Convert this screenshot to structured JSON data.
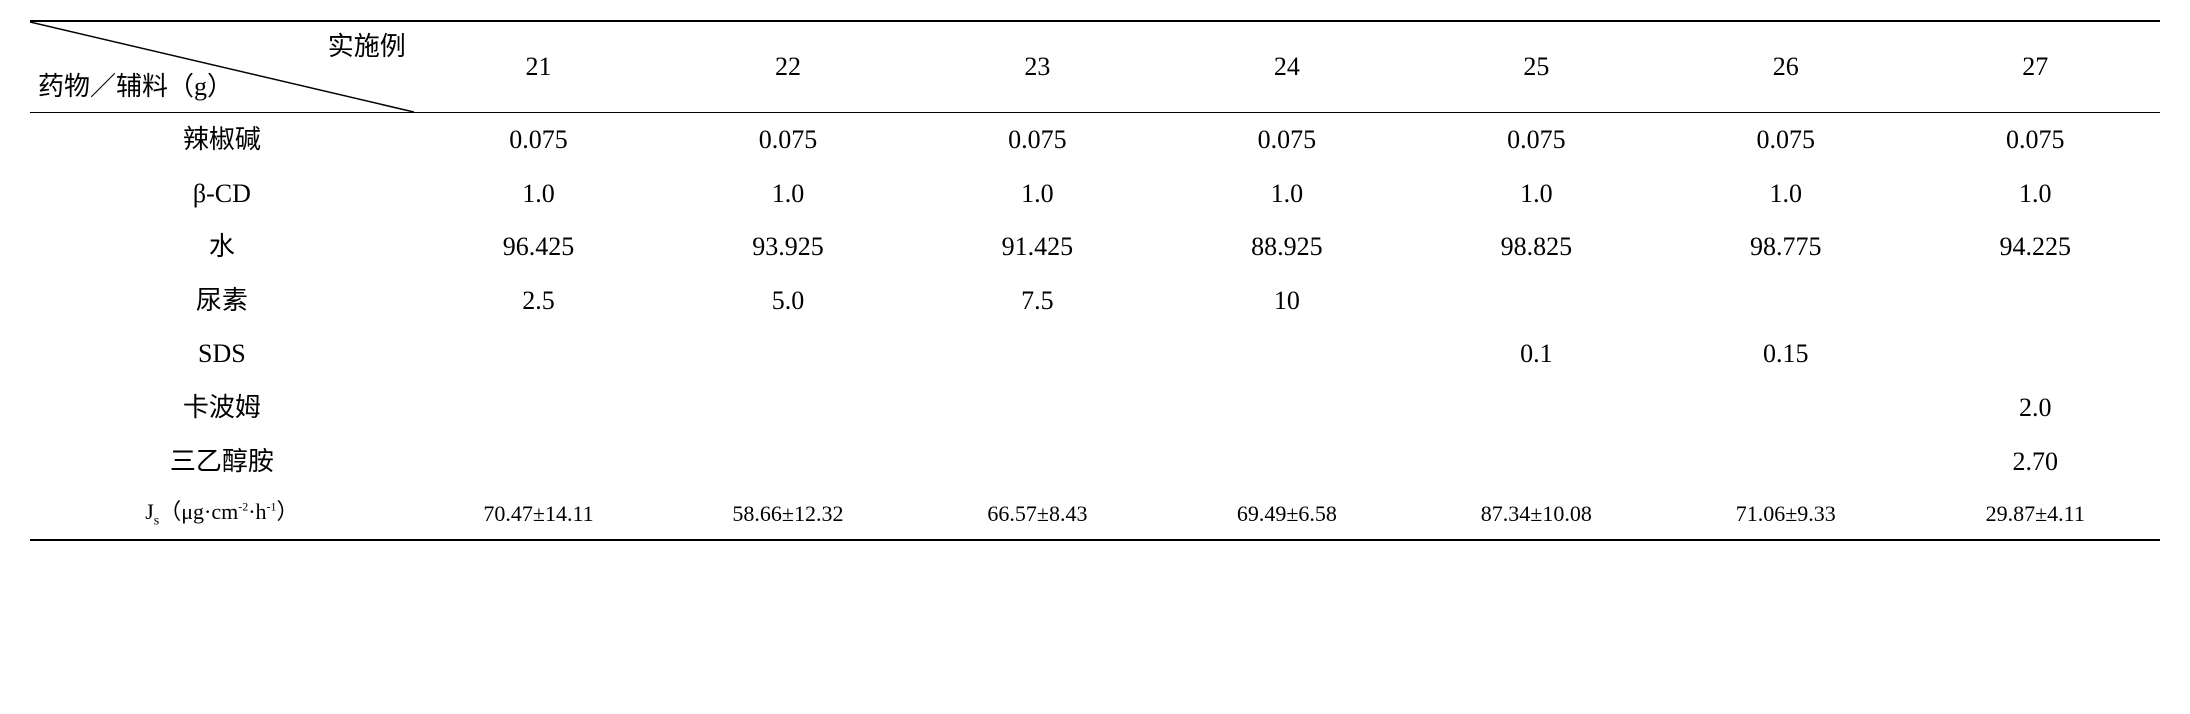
{
  "header": {
    "diag_top": "实施例",
    "diag_bot": "药物／辅料（g）",
    "cols": [
      "21",
      "22",
      "23",
      "24",
      "25",
      "26",
      "27"
    ]
  },
  "rows": [
    {
      "label": "辣椒碱",
      "cells": [
        "0.075",
        "0.075",
        "0.075",
        "0.075",
        "0.075",
        "0.075",
        "0.075"
      ]
    },
    {
      "label": "β-CD",
      "cells": [
        "1.0",
        "1.0",
        "1.0",
        "1.0",
        "1.0",
        "1.0",
        "1.0"
      ]
    },
    {
      "label": "水",
      "cells": [
        "96.425",
        "93.925",
        "91.425",
        "88.925",
        "98.825",
        "98.775",
        "94.225"
      ]
    },
    {
      "label": "尿素",
      "cells": [
        "2.5",
        "5.0",
        "7.5",
        "10",
        "",
        "",
        ""
      ]
    },
    {
      "label": "SDS",
      "cells": [
        "",
        "",
        "",
        "",
        "0.1",
        "0.15",
        ""
      ]
    },
    {
      "label": "卡波姆",
      "cells": [
        "",
        "",
        "",
        "",
        "",
        "",
        "2.0"
      ]
    },
    {
      "label": "三乙醇胺",
      "cells": [
        "",
        "",
        "",
        "",
        "",
        "",
        "2.70"
      ]
    }
  ],
  "js_row": {
    "label_html": "J<sub>s</sub>（μg·cm<sup>-2</sup>·h<sup>-1</sup>）",
    "cells": [
      "70.47±14.11",
      "58.66±12.32",
      "66.57±8.43",
      "69.49±6.58",
      "87.34±10.08",
      "71.06±9.33",
      "29.87±4.11"
    ]
  },
  "style": {
    "border_color": "#000000",
    "background_color": "#ffffff",
    "text_color": "#000000",
    "body_fontsize": 26,
    "js_fontsize": 22,
    "font_family": "SimSun / Times New Roman"
  }
}
